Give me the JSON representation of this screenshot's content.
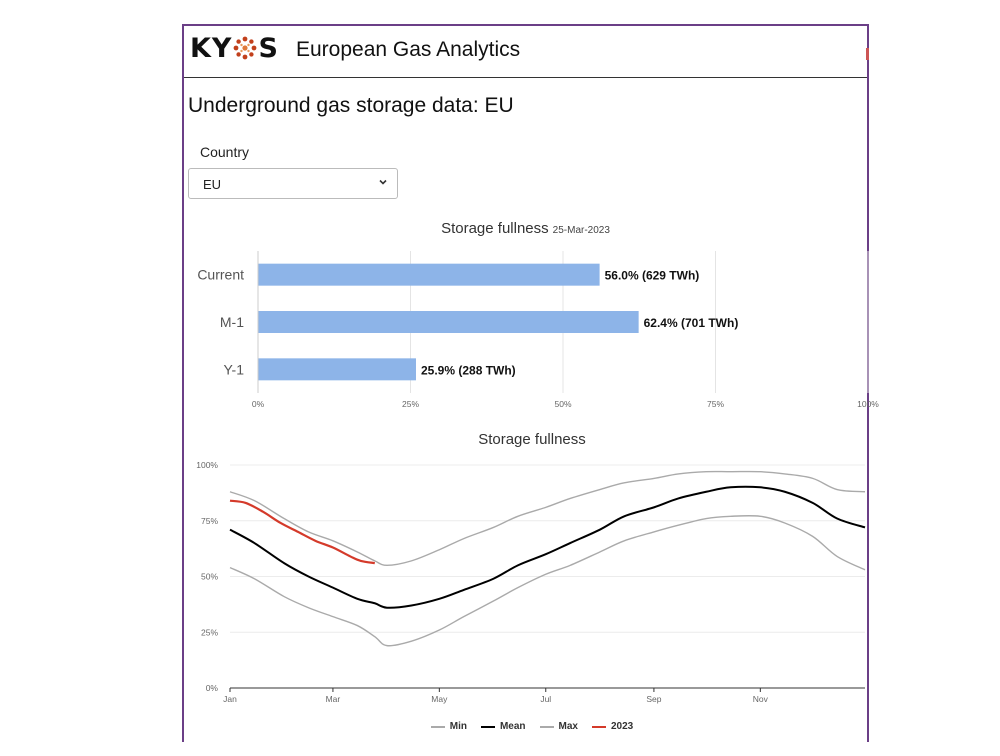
{
  "navbar": {
    "logo_text_left": "KY",
    "logo_text_right": "S",
    "brand_title": "European Gas Analytics"
  },
  "page": {
    "title": "Underground gas storage data: EU"
  },
  "country": {
    "label": "Country",
    "selected": "EU"
  },
  "colors": {
    "frame": "#6b3f87",
    "bar": "#8db4e8",
    "min": "#aaaaaa",
    "mean": "#000000",
    "max": "#aaaaaa",
    "y2023": "#d43a2a",
    "logo_dot": "#c2401c"
  },
  "bar_chart": {
    "title": "Storage fullness",
    "date": "25-Mar-2023",
    "categories": [
      "Current",
      "M-1",
      "Y-1"
    ],
    "values": [
      56.0,
      62.4,
      25.9
    ],
    "labels": [
      "56.0% (629 TWh)",
      "62.4% (701 TWh)",
      "25.9% (288 TWh)"
    ],
    "x_ticks": [
      "0%",
      "25%",
      "50%",
      "75%",
      "100%"
    ],
    "xlim": [
      0,
      100
    ]
  },
  "line_chart": {
    "title": "Storage fullness",
    "y_ticks": [
      "0%",
      "25%",
      "50%",
      "75%",
      "100%"
    ],
    "x_ticks": [
      "Jan",
      "Mar",
      "May",
      "Jul",
      "Sep",
      "Nov"
    ],
    "legend": [
      "Min",
      "Mean",
      "Max",
      "2023"
    ]
  },
  "chart_data": [
    {
      "type": "bar",
      "title": "Storage fullness",
      "subtitle": "25-Mar-2023",
      "categories": [
        "Current",
        "M-1",
        "Y-1"
      ],
      "values": [
        56.0,
        62.4,
        25.9
      ],
      "data_labels": [
        "56.0% (629 TWh)",
        "62.4% (701 TWh)",
        "25.9% (288 TWh)"
      ],
      "xlim": [
        0,
        100
      ],
      "orientation": "horizontal",
      "grid": true
    },
    {
      "type": "line",
      "title": "Storage fullness",
      "x": [
        1,
        15,
        32,
        46,
        60,
        74,
        84,
        91,
        105,
        121,
        135,
        152,
        166,
        182,
        196,
        213,
        227,
        244,
        258,
        274,
        288,
        305,
        319,
        335,
        349,
        365
      ],
      "ylim": [
        0,
        100
      ],
      "grid": true,
      "legend_position": "bottom",
      "series": [
        {
          "name": "Min",
          "values": [
            54,
            49,
            41,
            36,
            32,
            28,
            23,
            19,
            21,
            26,
            32,
            39,
            45,
            51,
            55,
            61,
            66,
            70,
            73,
            76,
            77,
            77,
            74,
            68,
            59,
            53
          ]
        },
        {
          "name": "Mean",
          "values": [
            71,
            65,
            56,
            50,
            45,
            40,
            38,
            36,
            37,
            40,
            44,
            49,
            55,
            60,
            65,
            71,
            77,
            81,
            85,
            88,
            90,
            90,
            88,
            83,
            76,
            72
          ]
        },
        {
          "name": "Max",
          "values": [
            88,
            84,
            76,
            70,
            66,
            61,
            57,
            55,
            57,
            62,
            67,
            72,
            77,
            81,
            85,
            89,
            92,
            94,
            96,
            97,
            97,
            97,
            96,
            94,
            89,
            88
          ]
        },
        {
          "name": "2023",
          "x": [
            1,
            10,
            20,
            30,
            40,
            50,
            60,
            70,
            76,
            84
          ],
          "values": [
            84,
            83,
            79,
            74,
            70,
            66,
            63,
            59,
            57,
            56
          ]
        }
      ]
    }
  ]
}
